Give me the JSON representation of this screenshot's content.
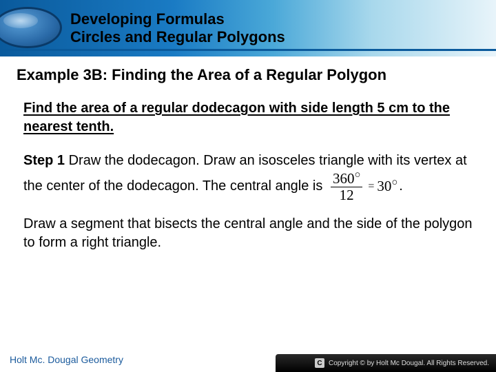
{
  "header": {
    "line1": "Developing Formulas",
    "line2": "Circles and Regular Polygons"
  },
  "example_title": "Example 3B: Finding the Area of a Regular Polygon",
  "prompt": "Find the area of a regular dodecagon with side length 5 cm to the nearest tenth.",
  "step1": {
    "label": "Step 1",
    "text_before": " Draw the dodecagon. Draw an isosceles triangle with its vertex at the center of the dodecagon. The central angle is ",
    "fraction": {
      "num": "360",
      "den": "12",
      "result": "30"
    },
    "text_after": "."
  },
  "para2": "Draw a segment that bisects the central angle and the side of the polygon to form a right triangle.",
  "footer": {
    "left": "Holt Mc. Dougal Geometry",
    "right": "Copyright © by Holt Mc Dougal. All Rights Reserved."
  },
  "colors": {
    "header_grad_start": "#0a5a9c",
    "header_grad_end": "#e8f4fa",
    "footer_text": "#1a5a9c"
  }
}
